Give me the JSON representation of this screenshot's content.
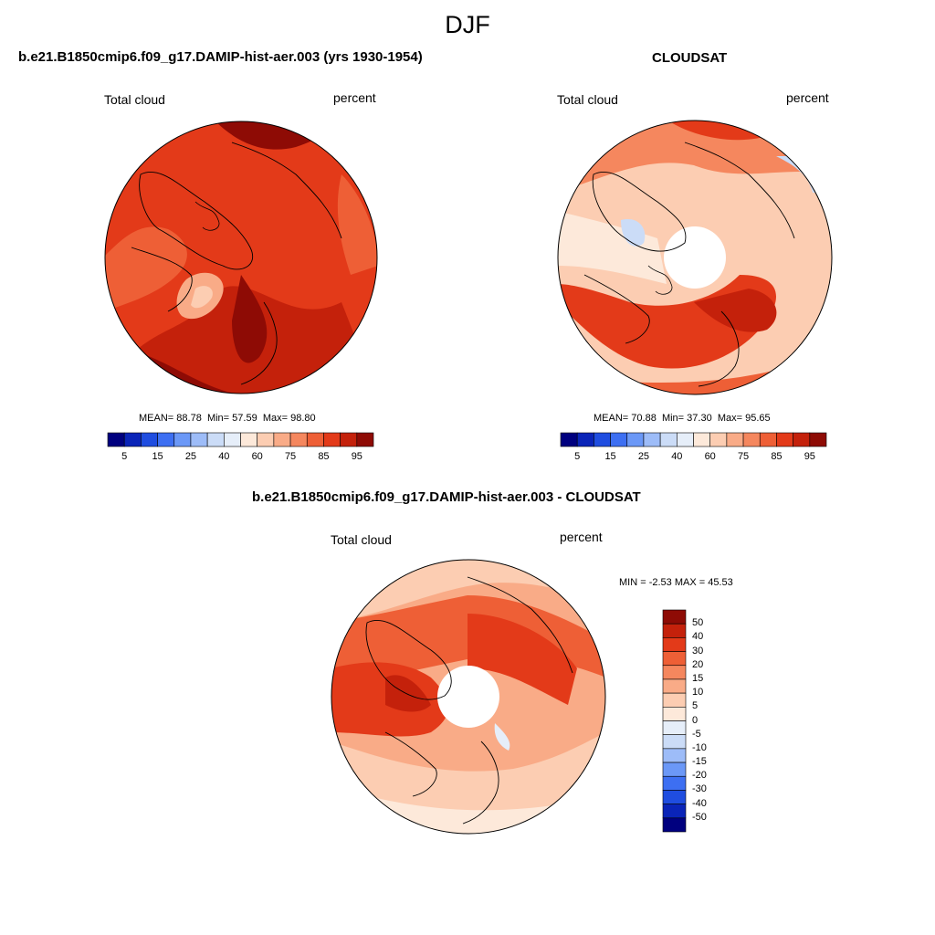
{
  "title": "DJF",
  "panels": [
    {
      "title": "b.e21.B1850cmip6.f09_g17.DAMIP-hist-aer.003 (yrs 1930-1954)",
      "variable": "Total cloud",
      "units": "percent",
      "stats": {
        "mean": "88.78",
        "min": "57.59",
        "max": "98.80"
      },
      "stats_labels": {
        "mean": "MEAN=",
        "min": "Min=",
        "max": "Max="
      },
      "dominant_level": 85
    },
    {
      "title": "CLOUDSAT",
      "variable": "Total cloud",
      "units": "percent",
      "stats": {
        "mean": "70.88",
        "min": "37.30",
        "max": "95.65"
      },
      "stats_labels": {
        "mean": "MEAN=",
        "min": "Min=",
        "max": "Max="
      },
      "dominant_level": 65,
      "missing_pole": true
    }
  ],
  "diff_panel": {
    "title": "b.e21.B1850cmip6.f09_g17.DAMIP-hist-aer.003 - CLOUDSAT",
    "variable": "Total cloud",
    "units": "percent",
    "minmax_text": "MIN =  -2.53 MAX =  45.53",
    "missing_pole": true
  },
  "colorbar_abs": {
    "colors": [
      "#00007f",
      "#0a24b8",
      "#1f4de0",
      "#3d6ff2",
      "#6b98f7",
      "#9dbcf8",
      "#cbdcf7",
      "#e6eef9",
      "#fde9da",
      "#fccdb2",
      "#f9ab87",
      "#f5875e",
      "#ee5f36",
      "#e33a19",
      "#c4210b",
      "#8e0b05"
    ],
    "tick_labels": [
      "5",
      "15",
      "25",
      "40",
      "60",
      "75",
      "85",
      "95"
    ]
  },
  "colorbar_diff": {
    "colors": [
      "#8e0b05",
      "#c4210b",
      "#e33a19",
      "#ee5f36",
      "#f5875e",
      "#f9ab87",
      "#fccdb2",
      "#fde9da",
      "#e6eef9",
      "#cbdcf7",
      "#9dbcf8",
      "#6b98f7",
      "#3d6ff2",
      "#1f4de0",
      "#0a24b8",
      "#00007f"
    ],
    "tick_labels": [
      "50",
      "40",
      "30",
      "20",
      "15",
      "10",
      "5",
      "0",
      "-5",
      "-10",
      "-15",
      "-20",
      "-30",
      "-40",
      "-50"
    ]
  }
}
